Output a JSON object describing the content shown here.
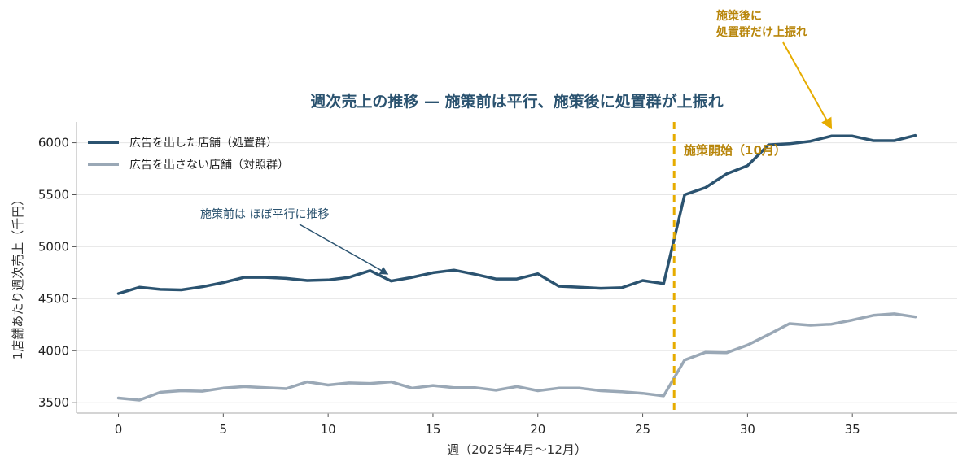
{
  "chart_data": {
    "type": "line",
    "title": "週次売上の推移 — 施策前は平行、施策後に処置群が上振れ",
    "xlabel": "週（2025年4月〜12月）",
    "ylabel": "1店舗あたり週次売上（千円）",
    "xlim": [
      -2,
      40
    ],
    "ylim": [
      3400,
      6200
    ],
    "xticks": [
      0,
      5,
      10,
      15,
      20,
      25,
      30,
      35
    ],
    "yticks": [
      3500,
      4000,
      4500,
      5000,
      5500,
      6000
    ],
    "grid": {
      "y": true,
      "x": false
    },
    "legend_position": "top-left",
    "x": [
      0,
      1,
      2,
      3,
      4,
      5,
      6,
      7,
      8,
      9,
      10,
      11,
      12,
      13,
      14,
      15,
      16,
      17,
      18,
      19,
      20,
      21,
      22,
      23,
      24,
      25,
      26,
      27,
      28,
      29,
      30,
      31,
      32,
      33,
      34,
      35,
      36,
      37,
      38
    ],
    "series": [
      {
        "name": "広告を出した店舗（処置群）",
        "color": "#2b5370",
        "values": [
          4550,
          4610,
          4590,
          4585,
          4615,
          4655,
          4705,
          4705,
          4695,
          4675,
          4680,
          4705,
          4770,
          4670,
          4705,
          4750,
          4775,
          4735,
          4690,
          4690,
          4740,
          4620,
          4610,
          4600,
          4605,
          4675,
          4645,
          5500,
          5570,
          5700,
          5780,
          5980,
          5990,
          6015,
          6065,
          6065,
          6020,
          6020,
          6070
        ]
      },
      {
        "name": "広告を出さない店舗（対照群）",
        "color": "#9aa8b6",
        "values": [
          3545,
          3525,
          3600,
          3615,
          3610,
          3640,
          3655,
          3645,
          3635,
          3700,
          3670,
          3690,
          3685,
          3700,
          3640,
          3665,
          3645,
          3645,
          3620,
          3655,
          3615,
          3640,
          3640,
          3615,
          3605,
          3590,
          3565,
          3910,
          3985,
          3980,
          4055,
          4155,
          4260,
          4245,
          4255,
          4295,
          4340,
          4355,
          4325
        ]
      }
    ],
    "intervention": {
      "x": 26.5,
      "label": "施策開始（10月）",
      "color": "#e6ac00"
    },
    "annotations": [
      {
        "text": "施策前は ほぼ平行に推移",
        "target_x": 13,
        "target_y": 4690,
        "color": "#2b5370"
      },
      {
        "text_lines": [
          "施策後に",
          "処置群だけ上振れ"
        ],
        "target_x": 34,
        "target_y": 6090,
        "color": "#c49100"
      }
    ],
    "colors": {
      "title": "#2b5370",
      "axis": "#bbbbbb",
      "grid": "#e6e6e6",
      "annotation_gold_text": "#b8860b",
      "annotation_gold_arrow": "#e6ac00",
      "annotation_blue": "#2b5370"
    }
  }
}
